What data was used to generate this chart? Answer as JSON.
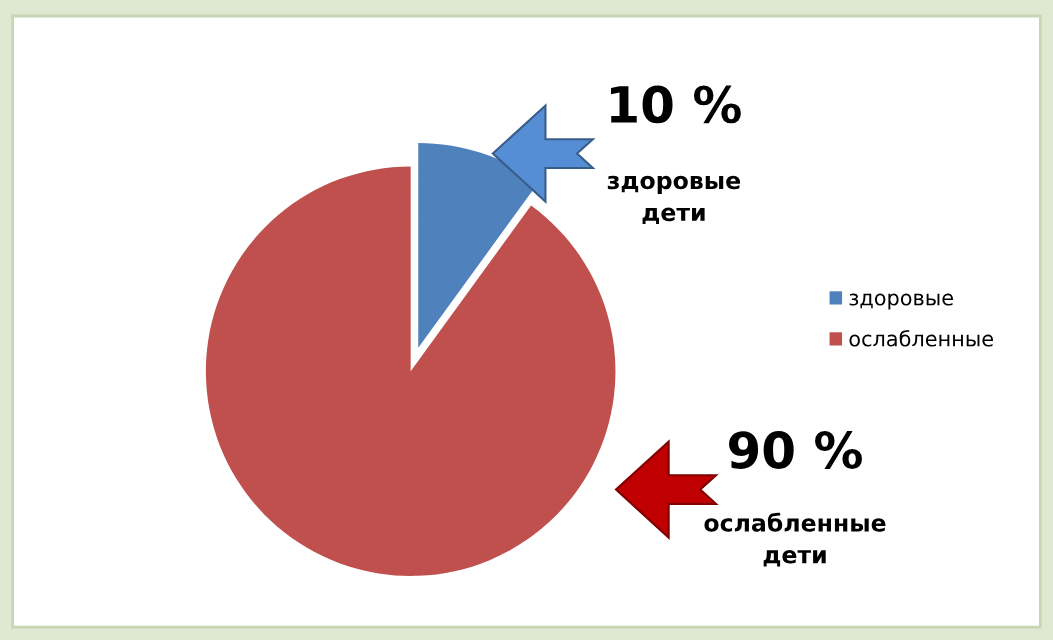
{
  "chart_data": {
    "type": "pie",
    "categories": [
      "здоровые",
      "ослабленные"
    ],
    "values": [
      10,
      90
    ],
    "colors": [
      "#4f81bd",
      "#c0504d"
    ],
    "value_labels": [
      "10 %",
      "90 %"
    ],
    "annotations": [
      "здоровые\nдети",
      "ослабленные\nдети"
    ],
    "legend": "right"
  }
}
